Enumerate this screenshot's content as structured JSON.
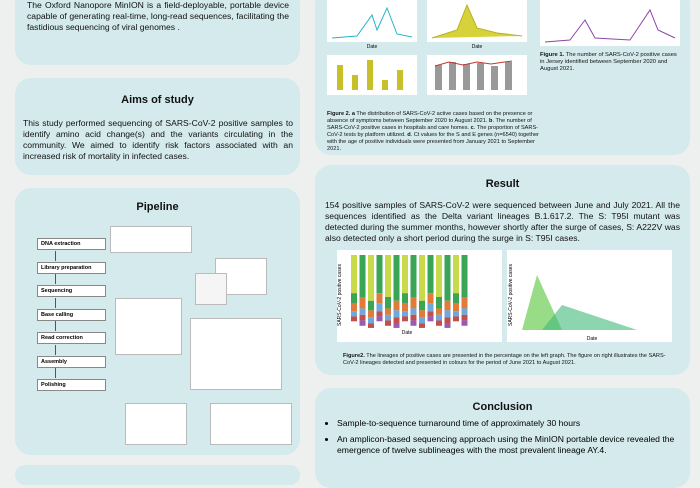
{
  "intro": {
    "text": "The Oxford Nanopore MinION is a field-deployable, portable device capable of generating real-time, long-read sequences, facilitating the fastidious sequencing of viral genomes ."
  },
  "aims": {
    "title": "Aims of study",
    "text": "This study performed sequencing of SARS-CoV-2 positive samples to identify amino acid change(s) and the variants circulating in the community. We aimed to identify risk factors associated with an increased risk of mortality in infected cases."
  },
  "pipeline": {
    "title": "Pipeline",
    "steps": [
      "DNA extraction",
      "Library preparation",
      "Sequencing",
      "Base calling",
      "Read correction",
      "Assembly",
      "Polishing"
    ]
  },
  "figures_top": {
    "axis_label": "Date",
    "figure1_caption": [
      {
        "bold": "Figure 1.",
        "text": " The number of SARS-CoV-2 positive cases in Jersey identified between September 2020 and August 2021."
      }
    ],
    "figure2_caption": [
      {
        "bold": "Figure 2. a",
        "text": " The distribution of SARS-CoV-2 active cases based on the presence or absence of symptoms between September 2020 to August 2021. "
      },
      {
        "bold": "b",
        "text": ". The number of SARS-CoV-2 positive cases in hospitals and care homes. "
      },
      {
        "bold": "c",
        "text": ". The proportion of SARS-CoV-2 tests by platform utilized. "
      },
      {
        "bold": "d",
        "text": ". Ct values for the S and E genes (n=6540) together with the age of positive individuals were presented from January 2021 to September 2021."
      }
    ]
  },
  "result": {
    "title": "Result",
    "text": "154 positive samples of SARS-CoV-2 were sequenced between June and July 2021. All the sequences identified as the Delta variant lineages B.1.617.2. The S: T95I mutant was detected during the summer months, however shortly after the surge of cases, S: A222V was also detected only a short period during the surge in S: T95I cases.",
    "axis_x": "Date",
    "axis_y": "SARS-CoV-2 positive cases",
    "caption": [
      {
        "bold": "Figure2.",
        "text": " The lineages of positive cases are presented in the percentage on the left graph. The figure on right illustrates the SARS-CoV-2 lineages detected and presented in colours for the period of June 2021 to August 2021."
      }
    ]
  },
  "conclusion": {
    "title": "Conclusion",
    "bullets": [
      "Sample-to-sequence turnaround time of approximately 30 hours",
      "An amplicon-based sequencing approach using the MinION portable device revealed the emergence of twelve sublineages with the most prevalent lineage AY.4."
    ]
  }
}
